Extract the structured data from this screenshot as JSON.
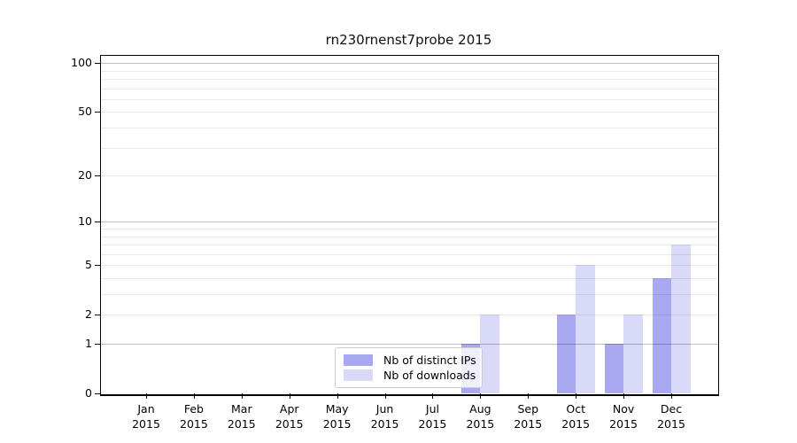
{
  "chart_data": {
    "type": "bar",
    "title": "rn230rnenst7probe 2015",
    "xlabel": "",
    "ylabel": "",
    "year_label": "2015",
    "categories": [
      "Jan",
      "Feb",
      "Mar",
      "Apr",
      "May",
      "Jun",
      "Jul",
      "Aug",
      "Sep",
      "Oct",
      "Nov",
      "Dec"
    ],
    "series": [
      {
        "name": "Nb of distinct IPs",
        "color": "#a9a9f1",
        "values": [
          0,
          0,
          0,
          0,
          0,
          0,
          0,
          1,
          0,
          2,
          1,
          4
        ]
      },
      {
        "name": "Nb of downloads",
        "color": "#d9d9f8",
        "values": [
          0,
          0,
          0,
          0,
          0,
          0,
          0,
          2,
          0,
          5,
          2,
          7
        ]
      }
    ],
    "y_scale": "log1p",
    "y_ticks": [
      0,
      1,
      2,
      5,
      10,
      20,
      50,
      100
    ],
    "y_major_gridlines": [
      1,
      10,
      100
    ],
    "y_minor_gridlines": [
      3,
      4,
      6,
      7,
      8,
      9,
      30,
      40,
      60,
      70,
      80,
      90
    ],
    "y_minor_gridlines_labeled": [
      2,
      5,
      20,
      50
    ],
    "ylim": [
      0,
      112
    ],
    "grid": true,
    "legend_position": "inside lower center",
    "legend": [
      "Nb of distinct IPs",
      "Nb of downloads"
    ]
  }
}
